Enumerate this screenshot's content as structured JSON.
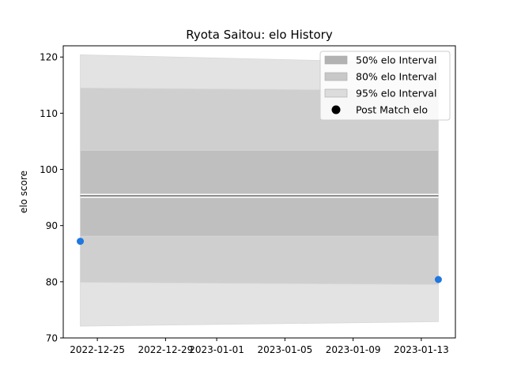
{
  "chart_data": {
    "type": "area",
    "title": "Ryota Saitou: elo History",
    "xlabel": "",
    "ylabel": "elo score",
    "x_tick_labels": [
      "2022-12-25",
      "2022-12-29",
      "2023-01-01",
      "2023-01-05",
      "2023-01-09",
      "2023-01-13"
    ],
    "x_ticks": [
      "2022-12-25",
      "2022-12-29",
      "2023-01-01",
      "2023-01-05",
      "2023-01-09",
      "2023-01-13"
    ],
    "y_ticks": [
      70,
      80,
      90,
      100,
      110,
      120
    ],
    "xlim": [
      "2022-12-23",
      "2023-01-15"
    ],
    "ylim": [
      70,
      122
    ],
    "x": [
      "2022-12-24",
      "2023-01-14"
    ],
    "mean": [
      95.3,
      95.3
    ],
    "bands": [
      {
        "name": "95% elo Interval",
        "lower": [
          72.1,
          72.9
        ],
        "upper": [
          120.4,
          118.9
        ],
        "color": "#e3e3e3"
      },
      {
        "name": "80% elo Interval",
        "lower": [
          79.9,
          79.5
        ],
        "upper": [
          114.5,
          114.0
        ],
        "color": "#cfcfcf"
      },
      {
        "name": "50% elo Interval",
        "lower": [
          88.1,
          88.1
        ],
        "upper": [
          103.4,
          103.4
        ],
        "color": "#bfbfbf"
      }
    ],
    "points": {
      "name": "Post Match elo",
      "x": [
        "2022-12-24",
        "2023-01-14"
      ],
      "y": [
        87.2,
        80.4
      ],
      "color": "#1f77e0"
    },
    "legend": {
      "placement": "top-right",
      "entries": [
        "50% elo Interval",
        "80% elo Interval",
        "95% elo Interval",
        "Post Match elo"
      ]
    },
    "grid": false
  }
}
